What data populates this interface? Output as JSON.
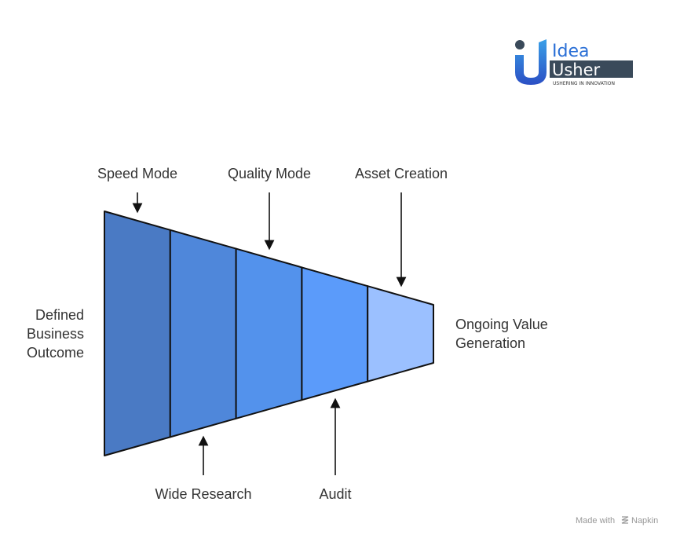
{
  "logo": {
    "line1": "Idea",
    "line2": "Usher",
    "tagline": "USHERING IN INNOVATION"
  },
  "stages": [
    {
      "name": "stage-1",
      "color": "#4A7AC4"
    },
    {
      "name": "stage-2",
      "color": "#4F87DA"
    },
    {
      "name": "stage-3",
      "color": "#5392EC"
    },
    {
      "name": "stage-4",
      "color": "#5B9BFA"
    },
    {
      "name": "stage-5",
      "color": "#9BC0FF"
    }
  ],
  "labels": {
    "left": [
      "Defined",
      "Business",
      "Outcome"
    ],
    "right": [
      "Ongoing Value",
      "Generation"
    ],
    "top": [
      "Speed Mode",
      "Quality Mode",
      "Asset Creation"
    ],
    "bottom": [
      "Wide Research",
      "Audit"
    ]
  },
  "footer": {
    "made_with": "Made with",
    "brand": "Napkin"
  }
}
